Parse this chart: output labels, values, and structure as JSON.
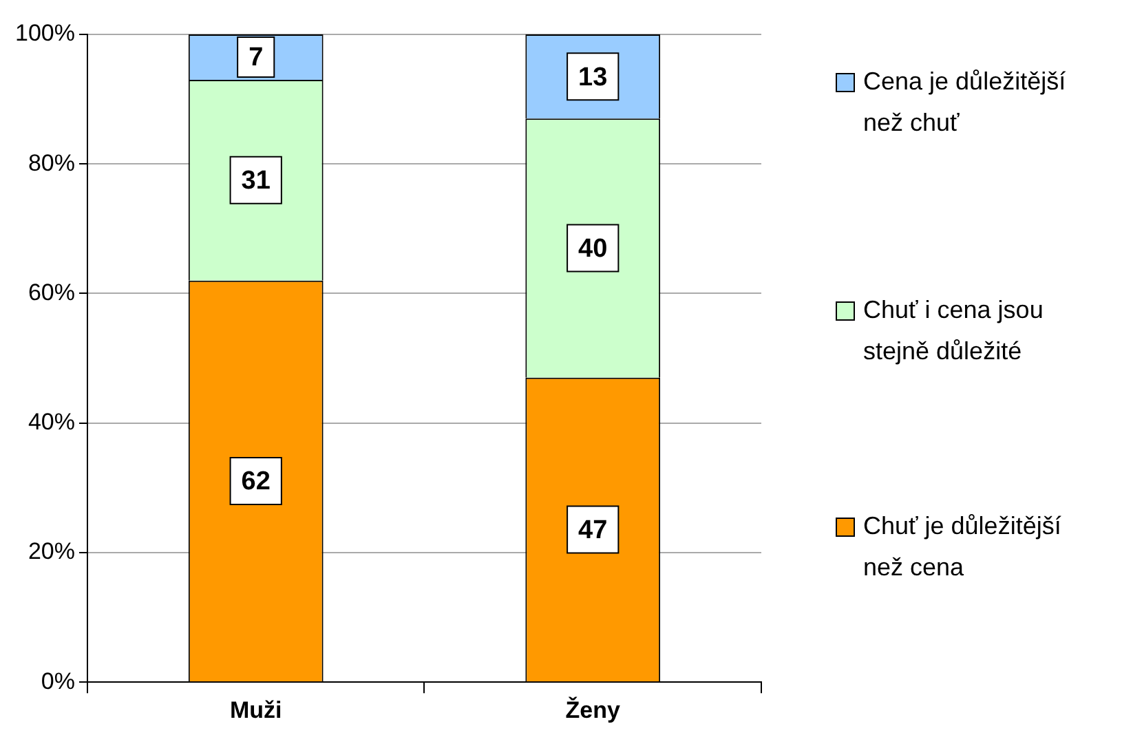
{
  "chart_data": {
    "type": "bar",
    "stacked": true,
    "categories": [
      "Muži",
      "Ženy"
    ],
    "series": [
      {
        "name": "Chuť je důležitější než cena",
        "color": "#ff9900",
        "values": [
          62,
          47
        ]
      },
      {
        "name": "Chuť i cena jsou stejně důležité",
        "color": "#ccffcc",
        "values": [
          31,
          40
        ]
      },
      {
        "name": "Cena je důležitější než chuť",
        "color": "#99ccff",
        "values": [
          7,
          13
        ]
      }
    ],
    "ylim": [
      0,
      100
    ],
    "yticks": [
      {
        "value": 0,
        "label": "0%"
      },
      {
        "value": 20,
        "label": "20%"
      },
      {
        "value": 40,
        "label": "40%"
      },
      {
        "value": 60,
        "label": "60%"
      },
      {
        "value": 80,
        "label": "80%"
      },
      {
        "value": 100,
        "label": "100%"
      }
    ],
    "grid": "y",
    "legend": "right",
    "data_labels": true
  }
}
